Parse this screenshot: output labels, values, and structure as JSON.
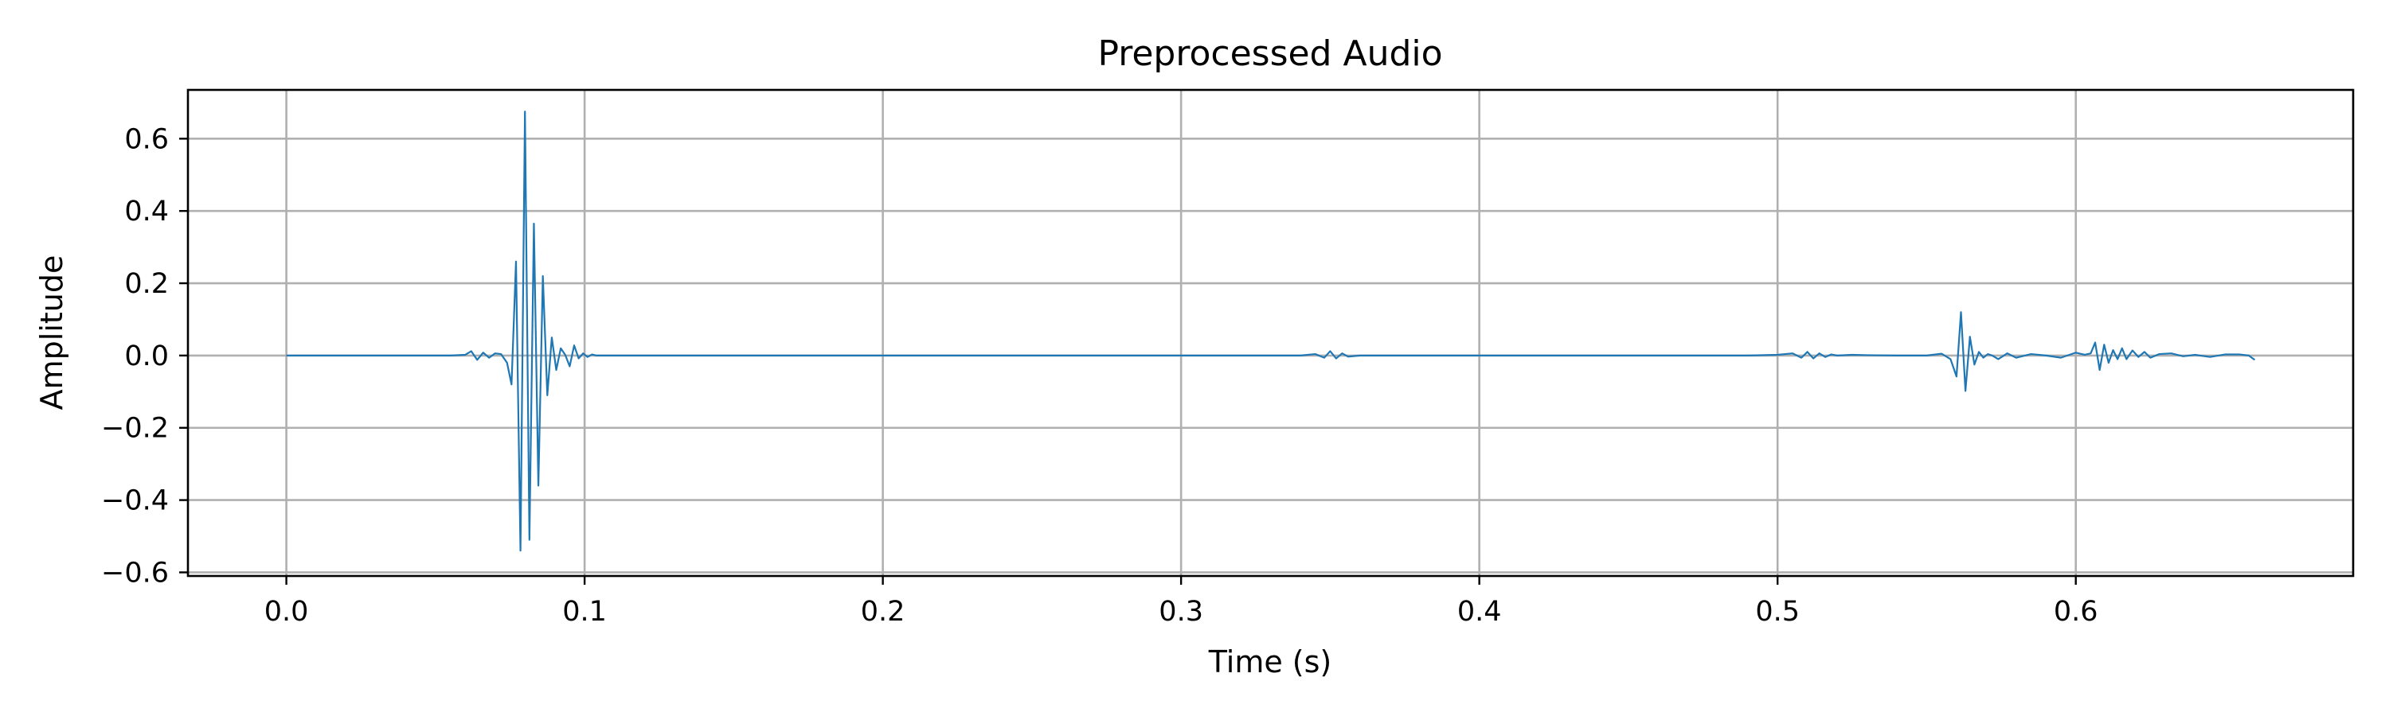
{
  "chart_data": {
    "type": "line",
    "title": "Preprocessed Audio",
    "xlabel": "Time (s)",
    "ylabel": "Amplitude",
    "xlim": [
      -0.033,
      0.693
    ],
    "ylim": [
      -0.61,
      0.735
    ],
    "x_ticks": [
      0.0,
      0.1,
      0.2,
      0.3,
      0.4,
      0.5,
      0.6
    ],
    "x_tick_labels": [
      "0.0",
      "0.1",
      "0.2",
      "0.3",
      "0.4",
      "0.5",
      "0.6"
    ],
    "y_ticks": [
      0.6,
      0.4,
      0.2,
      0.0,
      -0.2,
      -0.4,
      -0.6
    ],
    "y_tick_labels": [
      "0.6",
      "0.4",
      "0.2",
      "0.0",
      "−0.2",
      "−0.4",
      "−0.6"
    ],
    "grid": true,
    "line_color": "#1f77b4",
    "grid_color": "#b0b0b0",
    "series": [
      {
        "x": [
          0.0,
          0.02,
          0.04,
          0.055,
          0.06,
          0.062,
          0.064,
          0.066,
          0.068,
          0.07,
          0.072,
          0.074,
          0.0755,
          0.077,
          0.0785,
          0.08,
          0.0815,
          0.083,
          0.0845,
          0.086,
          0.0875,
          0.089,
          0.0905,
          0.092,
          0.0935,
          0.095,
          0.0965,
          0.098,
          0.0995,
          0.101,
          0.1025,
          0.104,
          0.1055,
          0.107,
          0.1085,
          0.11,
          0.112,
          0.116,
          0.12,
          0.13,
          0.16,
          0.2,
          0.25,
          0.3,
          0.34,
          0.345,
          0.348,
          0.35,
          0.352,
          0.354,
          0.356,
          0.36,
          0.4,
          0.45,
          0.49,
          0.5,
          0.505,
          0.508,
          0.51,
          0.512,
          0.514,
          0.516,
          0.518,
          0.52,
          0.525,
          0.53,
          0.54,
          0.55,
          0.555,
          0.558,
          0.56,
          0.5615,
          0.563,
          0.5645,
          0.566,
          0.5675,
          0.569,
          0.5705,
          0.572,
          0.574,
          0.577,
          0.58,
          0.585,
          0.59,
          0.595,
          0.6,
          0.603,
          0.605,
          0.6065,
          0.608,
          0.6095,
          0.611,
          0.6125,
          0.614,
          0.6155,
          0.617,
          0.619,
          0.621,
          0.623,
          0.625,
          0.628,
          0.632,
          0.636,
          0.64,
          0.645,
          0.65,
          0.655,
          0.658,
          0.66
        ],
        "y": [
          0.0,
          0.0,
          0.0,
          0.0,
          0.002,
          0.012,
          -0.012,
          0.008,
          -0.006,
          0.006,
          0.004,
          -0.02,
          -0.08,
          0.26,
          -0.54,
          0.675,
          -0.51,
          0.365,
          -0.36,
          0.22,
          -0.11,
          0.05,
          -0.04,
          0.02,
          0.002,
          -0.03,
          0.028,
          -0.008,
          0.006,
          -0.004,
          0.003,
          0.0,
          0.0,
          0.0,
          0.0,
          0.0,
          0.0,
          0.0,
          0.0,
          0.0,
          0.0,
          0.0,
          0.0,
          0.0,
          0.0,
          0.004,
          -0.006,
          0.012,
          -0.008,
          0.006,
          -0.003,
          0.0,
          0.0,
          0.0,
          0.0,
          0.002,
          0.006,
          -0.006,
          0.01,
          -0.008,
          0.006,
          -0.004,
          0.003,
          0.0,
          0.002,
          0.001,
          0.0,
          0.0,
          0.005,
          -0.01,
          -0.058,
          0.12,
          -0.098,
          0.052,
          -0.025,
          0.01,
          -0.006,
          0.004,
          0.0,
          -0.01,
          0.006,
          -0.006,
          0.004,
          0.0,
          -0.006,
          0.008,
          0.002,
          0.006,
          0.036,
          -0.04,
          0.03,
          -0.02,
          0.015,
          -0.01,
          0.02,
          -0.01,
          0.014,
          -0.004,
          0.01,
          -0.006,
          0.004,
          0.006,
          -0.002,
          0.002,
          -0.004,
          0.003,
          0.003,
          0.0,
          -0.012
        ]
      }
    ]
  }
}
